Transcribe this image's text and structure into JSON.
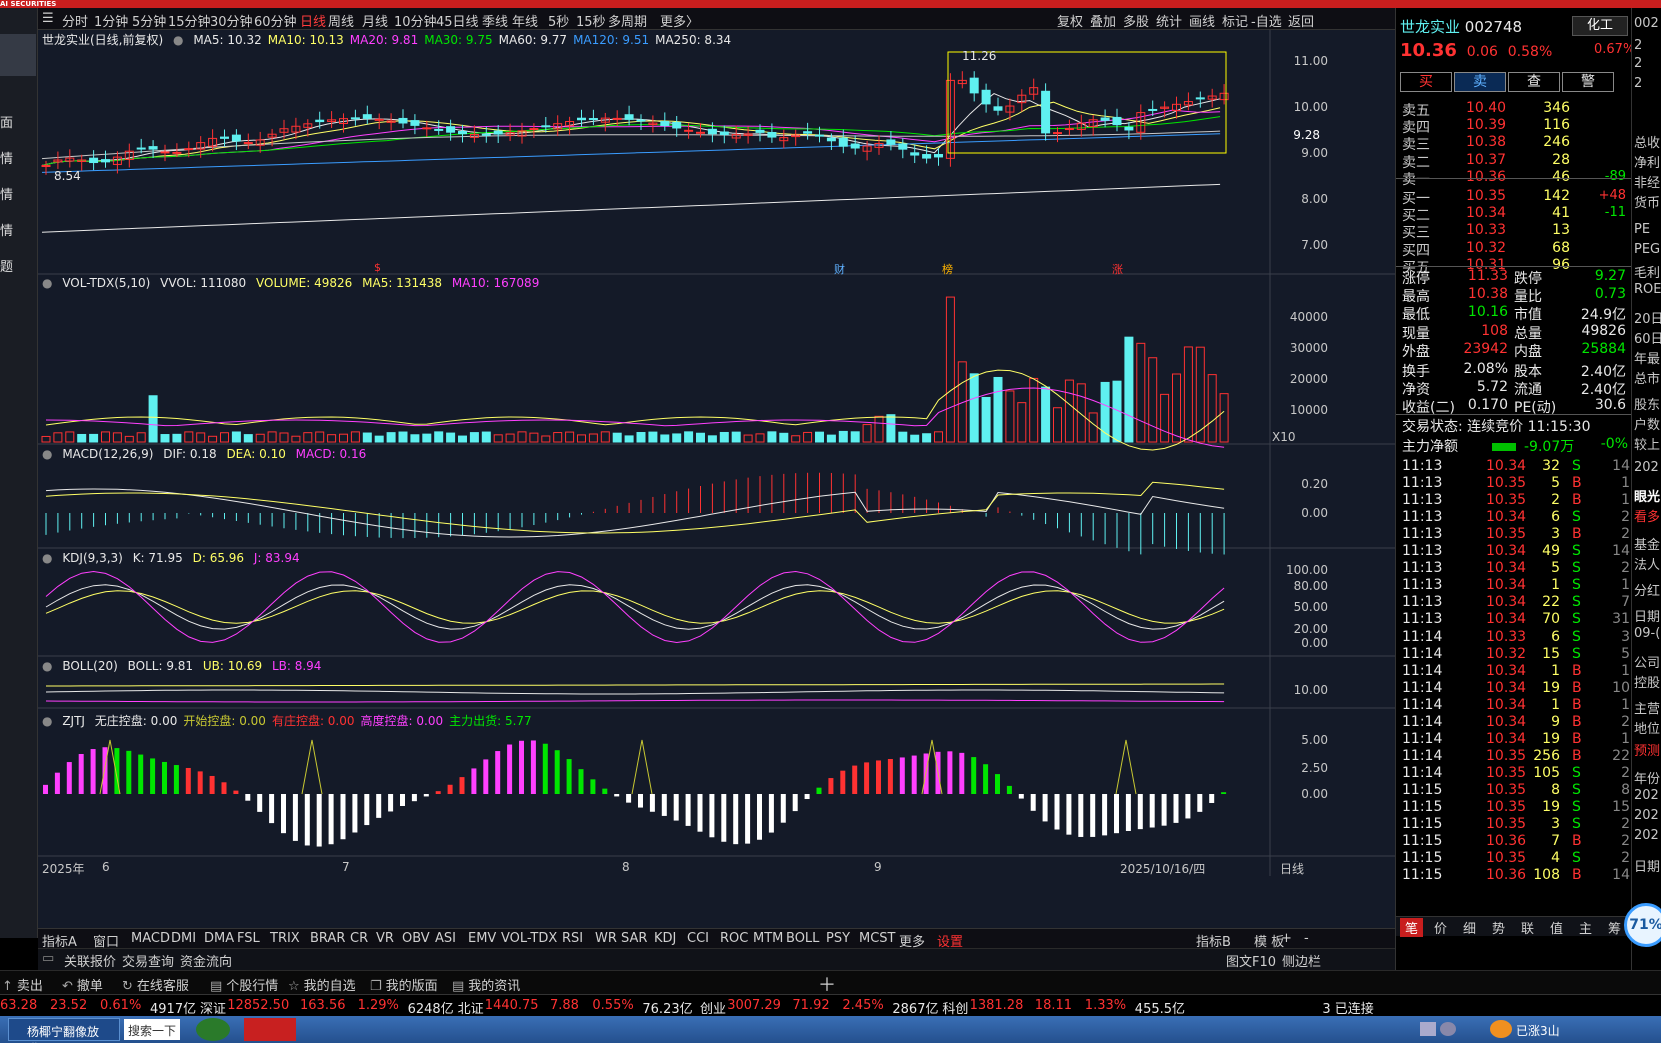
{
  "app": {
    "logo": "AI SECURITIES"
  },
  "sidebar": {
    "items": [
      "面",
      "情",
      "情",
      "情",
      "题"
    ]
  },
  "period_tabs": [
    "分时",
    "1分钟",
    "5分钟",
    "15分钟",
    "30分钟",
    "60分钟",
    "日线",
    "周线",
    "月线",
    "10分钟",
    "45日线",
    "季线",
    "年线",
    "5秒",
    "15秒",
    "多周期",
    "更多〉"
  ],
  "active_period": "日线",
  "tools": [
    "复权",
    "叠加",
    "多股",
    "统计",
    "画线",
    "标记",
    "-自选",
    "返回"
  ],
  "main_chart": {
    "title": "世龙实业(日线,前复权)",
    "ma": [
      {
        "label": "MA5: 10.32",
        "color": "#e8e8e8"
      },
      {
        "label": "MA10: 10.13",
        "color": "#ffff66"
      },
      {
        "label": "MA20: 9.81",
        "color": "#ff40ff"
      },
      {
        "label": "MA30: 9.75",
        "color": "#00e600"
      },
      {
        "label": "MA60: 9.77",
        "color": "#e8e8e8"
      },
      {
        "label": "MA120: 9.51",
        "color": "#3a9cff"
      },
      {
        "label": "MA250: 8.34",
        "color": "#e8e8e8"
      }
    ],
    "y_labels": [
      "11.00",
      "10.00",
      "9.00",
      "8.00",
      "7.00"
    ],
    "high_label": "11.26",
    "low_label": "8.54",
    "cursor_price": "9.28",
    "markers": [
      "$",
      "财",
      "榜",
      "涨"
    ]
  },
  "volume_pane": {
    "title": "VOL-TDX(5,10)",
    "vvol": "VVOL: 111080",
    "volume": "VOLUME: 49826",
    "ma5": "MA5: 131438",
    "ma10": "MA10: 167089",
    "y_labels": [
      "40000",
      "30000",
      "20000",
      "10000"
    ],
    "unit": "X10"
  },
  "macd_pane": {
    "title": "MACD(12,26,9)",
    "dif": "DIF: 0.18",
    "dea": "DEA: 0.10",
    "macd": "MACD: 0.16",
    "y_labels": [
      "0.20",
      "0.00"
    ]
  },
  "kdj_pane": {
    "title": "KDJ(9,3,3)",
    "k": "K: 71.95",
    "d": "D: 65.96",
    "j": "J: 83.94",
    "y_labels": [
      "100.00",
      "80.00",
      "50.00",
      "20.00",
      "0.00"
    ]
  },
  "boll_pane": {
    "title": "BOLL(20)",
    "boll": "BOLL: 9.81",
    "ub": "UB: 10.69",
    "lb": "LB: 8.94",
    "y_labels": [
      "10.00"
    ]
  },
  "zjtj_pane": {
    "title": "ZJTJ",
    "items": [
      {
        "label": "无庄控盘: 0.00",
        "color": "#e8e8e8"
      },
      {
        "label": "开始控盘: 0.00",
        "color": "#c8c832"
      },
      {
        "label": "有庄控盘: 0.00",
        "color": "#ff3232"
      },
      {
        "label": "高度控盘: 0.00",
        "color": "#ff40ff"
      },
      {
        "label": "主力出货: 5.77",
        "color": "#00e600"
      }
    ],
    "y_labels": [
      "5.00",
      "2.50",
      "0.00"
    ]
  },
  "x_axis": {
    "labels": [
      "2025年",
      "6",
      "7",
      "8",
      "9",
      "2025/10/16/四"
    ],
    "period": "日线"
  },
  "indicator_tabs": [
    "指标A",
    "窗口",
    "MACD",
    "DMI",
    "DMA",
    "FSL",
    "TRIX",
    "BRAR",
    "CR",
    "VR",
    "OBV",
    "ASI",
    "EMV",
    "VOL-TDX",
    "RSI",
    "WR",
    "SAR",
    "KDJ",
    "CCI",
    "ROC",
    "MTM",
    "BOLL",
    "PSY",
    "MCST",
    "更多",
    "设置"
  ],
  "indicator_tabs_right": [
    "指标B",
    "模 板",
    "+",
    "-"
  ],
  "link_bar": [
    "关联报价",
    "交易查询",
    "资金流向"
  ],
  "link_bar_right": [
    "图文F10",
    "侧边栏"
  ],
  "action_bar": [
    "卖出",
    "撤单",
    "在线客服",
    "个股行情",
    "我的自选",
    "我的版面",
    "我的资讯"
  ],
  "index_bar": [
    {
      "text": "63.28",
      "color": "red"
    },
    {
      "text": "23.52",
      "color": "red"
    },
    {
      "text": "0.61%",
      "color": "red"
    },
    {
      "text": "4917亿",
      "color": "white"
    },
    {
      "text": "深证",
      "color": "white"
    },
    {
      "text": "12852.50",
      "color": "red"
    },
    {
      "text": "163.56",
      "color": "red"
    },
    {
      "text": "1.29%",
      "color": "red"
    },
    {
      "text": "6248亿",
      "color": "white"
    },
    {
      "text": "北证",
      "color": "white"
    },
    {
      "text": "1440.75",
      "color": "red"
    },
    {
      "text": "7.88",
      "color": "red"
    },
    {
      "text": "0.55%",
      "color": "red"
    },
    {
      "text": "76.23亿",
      "color": "white"
    },
    {
      "text": "创业",
      "color": "white"
    },
    {
      "text": "3007.29",
      "color": "red"
    },
    {
      "text": "71.92",
      "color": "red"
    },
    {
      "text": "2.45%",
      "color": "red"
    },
    {
      "text": "2867亿",
      "color": "white"
    },
    {
      "text": "科创",
      "color": "white"
    },
    {
      "text": "1381.28",
      "color": "red"
    },
    {
      "text": "18.11",
      "color": "red"
    },
    {
      "text": "1.33%",
      "color": "red"
    },
    {
      "text": "455.5亿",
      "color": "white"
    },
    {
      "text": "3 已连接",
      "color": "white"
    }
  ],
  "taskbar": {
    "item1": "杨椰宁翻像放满...",
    "search": "搜索一下",
    "right_text": "已涨3山"
  },
  "right_panel": {
    "name": "世龙实业",
    "code": "002748",
    "sector": "化工",
    "price": "10.36",
    "change": "0.06",
    "change_pct": "0.58%",
    "sector_pct": "0.67%",
    "buttons": [
      "买",
      "卖",
      "查",
      "警"
    ],
    "asks": [
      {
        "label": "卖五",
        "price": "10.40",
        "vol": "346",
        "chg": ""
      },
      {
        "label": "卖四",
        "price": "10.39",
        "vol": "116",
        "chg": ""
      },
      {
        "label": "卖三",
        "price": "10.38",
        "vol": "246",
        "chg": ""
      },
      {
        "label": "卖二",
        "price": "10.37",
        "vol": "28",
        "chg": ""
      },
      {
        "label": "卖一",
        "price": "10.36",
        "vol": "46",
        "chg": "-89"
      }
    ],
    "bids": [
      {
        "label": "买一",
        "price": "10.35",
        "vol": "142",
        "chg": "+48"
      },
      {
        "label": "买二",
        "price": "10.34",
        "vol": "41",
        "chg": "-11"
      },
      {
        "label": "买三",
        "price": "10.33",
        "vol": "13",
        "chg": ""
      },
      {
        "label": "买四",
        "price": "10.32",
        "vol": "68",
        "chg": ""
      },
      {
        "label": "买五",
        "price": "10.31",
        "vol": "96",
        "chg": ""
      }
    ],
    "stats": [
      {
        "l1": "涨停",
        "v1": "11.33",
        "c1": "red",
        "l2": "跌停",
        "v2": "9.27",
        "c2": "green"
      },
      {
        "l1": "最高",
        "v1": "10.38",
        "c1": "red",
        "l2": "量比",
        "v2": "0.73",
        "c2": "green"
      },
      {
        "l1": "最低",
        "v1": "10.16",
        "c1": "green",
        "l2": "市值",
        "v2": "24.9亿",
        "c2": "white"
      },
      {
        "l1": "现量",
        "v1": "108",
        "c1": "red",
        "l2": "总量",
        "v2": "49826",
        "c2": "white"
      },
      {
        "l1": "外盘",
        "v1": "23942",
        "c1": "red",
        "l2": "内盘",
        "v2": "25884",
        "c2": "green"
      },
      {
        "l1": "换手",
        "v1": "2.08%",
        "c1": "white",
        "l2": "股本",
        "v2": "2.40亿",
        "c2": "white"
      },
      {
        "l1": "净资",
        "v1": "5.72",
        "c1": "white",
        "l2": "流通",
        "v2": "2.40亿",
        "c2": "white"
      },
      {
        "l1": "收益(二)",
        "v1": "0.170",
        "c1": "white",
        "l2": "PE(动)",
        "v2": "30.6",
        "c2": "white"
      }
    ],
    "trade_status": "交易状态: 连续竞价 11:15:30",
    "main_flow_label": "主力净额",
    "main_flow_value": "-9.07万",
    "main_flow_pct": "-0%",
    "ticks": [
      {
        "t": "11:13",
        "p": "10.34",
        "v": "32",
        "bs": "S",
        "n": "14"
      },
      {
        "t": "11:13",
        "p": "10.35",
        "v": "5",
        "bs": "B",
        "n": "1"
      },
      {
        "t": "11:13",
        "p": "10.35",
        "v": "2",
        "bs": "B",
        "n": "1"
      },
      {
        "t": "11:13",
        "p": "10.34",
        "v": "6",
        "bs": "S",
        "n": "2"
      },
      {
        "t": "11:13",
        "p": "10.35",
        "v": "3",
        "bs": "B",
        "n": "2"
      },
      {
        "t": "11:13",
        "p": "10.34",
        "v": "49",
        "bs": "S",
        "n": "14"
      },
      {
        "t": "11:13",
        "p": "10.34",
        "v": "5",
        "bs": "S",
        "n": "2"
      },
      {
        "t": "11:13",
        "p": "10.34",
        "v": "1",
        "bs": "S",
        "n": "1"
      },
      {
        "t": "11:13",
        "p": "10.34",
        "v": "22",
        "bs": "S",
        "n": "7"
      },
      {
        "t": "11:13",
        "p": "10.34",
        "v": "70",
        "bs": "S",
        "n": "31"
      },
      {
        "t": "11:14",
        "p": "10.33",
        "v": "6",
        "bs": "S",
        "n": "3"
      },
      {
        "t": "11:14",
        "p": "10.32",
        "v": "15",
        "bs": "S",
        "n": "5"
      },
      {
        "t": "11:14",
        "p": "10.34",
        "v": "1",
        "bs": "B",
        "n": "1"
      },
      {
        "t": "11:14",
        "p": "10.34",
        "v": "19",
        "bs": "B",
        "n": "10"
      },
      {
        "t": "11:14",
        "p": "10.34",
        "v": "1",
        "bs": "B",
        "n": "1"
      },
      {
        "t": "11:14",
        "p": "10.34",
        "v": "9",
        "bs": "B",
        "n": "2"
      },
      {
        "t": "11:14",
        "p": "10.34",
        "v": "19",
        "bs": "B",
        "n": "1"
      },
      {
        "t": "11:14",
        "p": "10.35",
        "v": "256",
        "bs": "B",
        "n": "22"
      },
      {
        "t": "11:14",
        "p": "10.35",
        "v": "105",
        "bs": "S",
        "n": "2"
      },
      {
        "t": "11:15",
        "p": "10.35",
        "v": "8",
        "bs": "S",
        "n": "8"
      },
      {
        "t": "11:15",
        "p": "10.35",
        "v": "19",
        "bs": "S",
        "n": "15"
      },
      {
        "t": "11:15",
        "p": "10.35",
        "v": "3",
        "bs": "S",
        "n": "2"
      },
      {
        "t": "11:15",
        "p": "10.36",
        "v": "7",
        "bs": "B",
        "n": "2"
      },
      {
        "t": "11:15",
        "p": "10.35",
        "v": "4",
        "bs": "S",
        "n": "2"
      },
      {
        "t": "11:15",
        "p": "10.36",
        "v": "108",
        "bs": "B",
        "n": "14"
      }
    ],
    "bottom_tabs": [
      "笔",
      "价",
      "细",
      "势",
      "联",
      "值",
      "主",
      "筹"
    ]
  },
  "far_right": {
    "items": [
      "002",
      "2",
      "2",
      "2",
      "总收",
      "净利",
      "非经",
      "货币",
      "PE",
      "PEG",
      "毛利",
      "ROE",
      "20日",
      "60日",
      "年最",
      "总市",
      "股东",
      "户数",
      "较上",
      "202",
      "眼光",
      "看多",
      "基金",
      "法人",
      "分红",
      "日期",
      "09-(",
      "公司",
      "控股",
      "主营",
      "地位",
      "预测",
      "年份",
      "202",
      "202",
      "202",
      "日期"
    ],
    "badge": "71%"
  }
}
